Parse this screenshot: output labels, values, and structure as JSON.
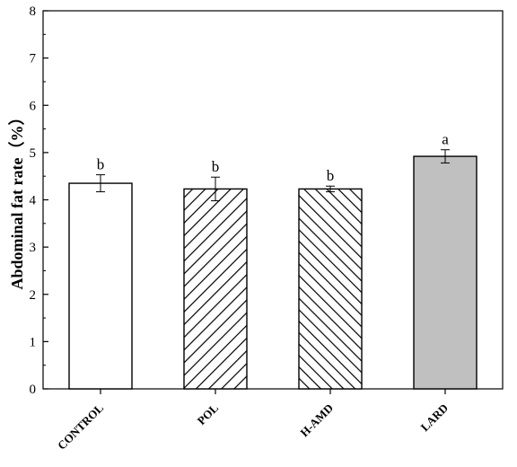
{
  "chart_data": {
    "type": "bar",
    "title": "",
    "xlabel": "",
    "ylabel": "Abdominal fat rate（%）",
    "ylim": [
      0,
      8
    ],
    "yticks": [
      0,
      1,
      2,
      3,
      4,
      5,
      6,
      7,
      8
    ],
    "categories": [
      "CONTROL",
      "POL",
      "H-AMD",
      "LARD"
    ],
    "values": [
      4.35,
      4.23,
      4.23,
      4.92
    ],
    "errors": [
      0.18,
      0.25,
      0.06,
      0.14
    ],
    "significance": [
      "b",
      "b",
      "b",
      "a"
    ],
    "bar_fills": [
      "white",
      "hatch-right",
      "hatch-left",
      "gray"
    ],
    "colors": {
      "gray_fill": "#c0c0c0",
      "stroke": "#000000"
    },
    "grid": false
  }
}
